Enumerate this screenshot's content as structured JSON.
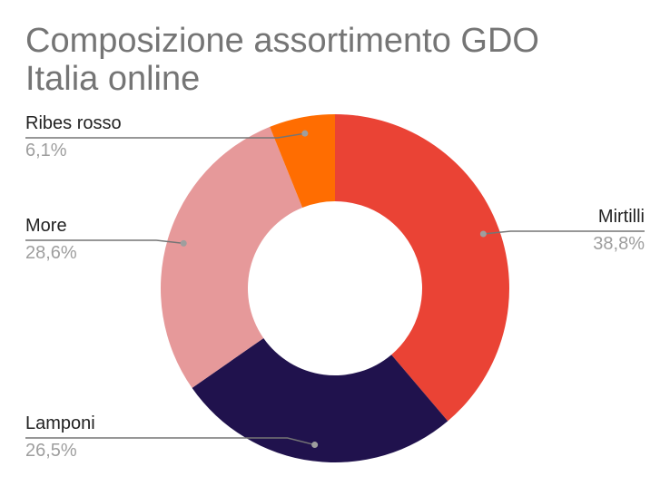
{
  "title_lines": [
    "Composizione assortimento GDO",
    "Italia online"
  ],
  "chart_data": {
    "type": "pie",
    "donut": true,
    "title": "Composizione assortimento GDO Italia online",
    "categories": [
      "Mirtilli",
      "Lamponi",
      "More",
      "Ribes rosso"
    ],
    "values": [
      38.8,
      26.5,
      28.6,
      6.1
    ],
    "value_labels": [
      "38,8%",
      "26,5%",
      "28,6%",
      "6,1%"
    ],
    "colors": [
      "#ea4335",
      "#20124d",
      "#e6999a",
      "#ff6d01"
    ],
    "legend": "none",
    "leader_color": "#757575"
  }
}
